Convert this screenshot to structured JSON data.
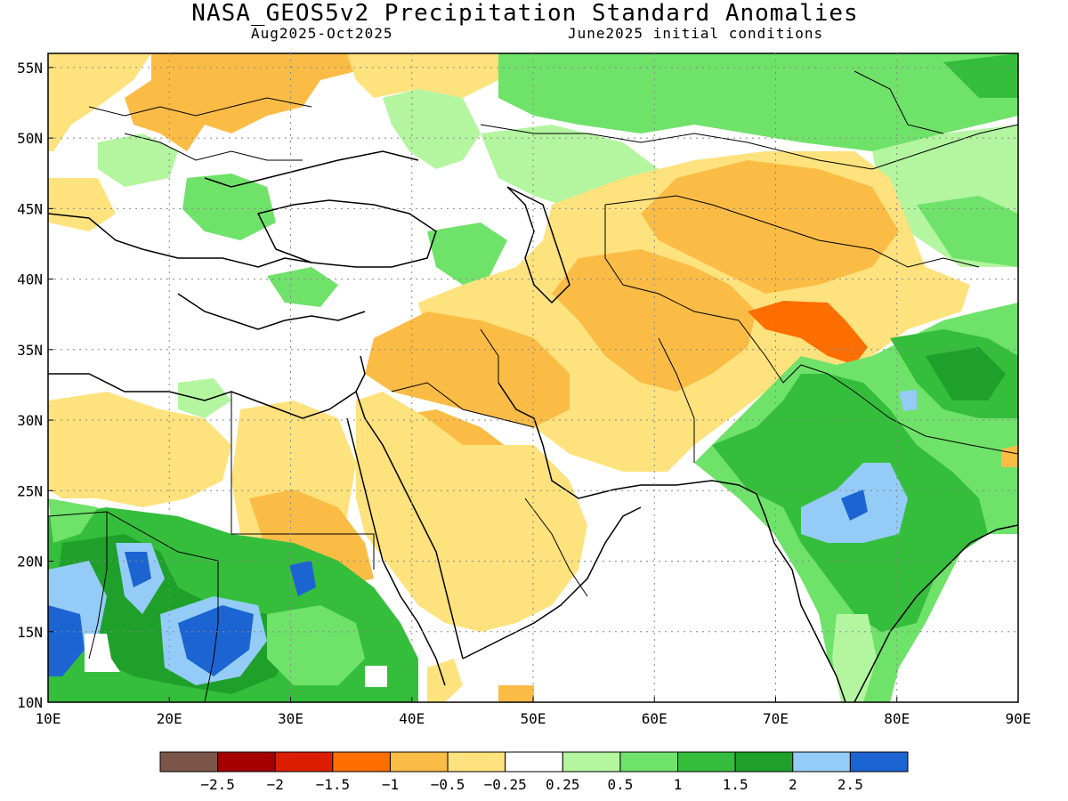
{
  "title": "NASA_GEOS5v2 Precipitation Standard Anomalies",
  "subtitle_left": "Aug2025-Oct2025",
  "subtitle_right": "June2025 initial conditions",
  "map": {
    "lon_range": [
      10,
      90
    ],
    "lat_range": [
      10,
      56
    ],
    "lon_ticks": [
      "10E",
      "20E",
      "30E",
      "40E",
      "50E",
      "60E",
      "70E",
      "80E",
      "90E"
    ],
    "lat_ticks": [
      "10N",
      "15N",
      "20N",
      "25N",
      "30N",
      "35N",
      "40N",
      "45N",
      "50N",
      "55N"
    ],
    "lon_tick_values": [
      10,
      20,
      30,
      40,
      50,
      60,
      70,
      80,
      90
    ],
    "lat_tick_values": [
      10,
      15,
      20,
      25,
      30,
      35,
      40,
      45,
      50,
      55
    ],
    "gridlines": "dotted"
  },
  "colorbar": {
    "colors": [
      "#7a5548",
      "#a50000",
      "#dc1e00",
      "#ff6e00",
      "#fbbc46",
      "#fee27d",
      "#ffffff",
      "#b4f5a0",
      "#6fe26a",
      "#35be3c",
      "#1ea02a",
      "#94ccf7",
      "#1c64d2"
    ],
    "labels": [
      "-2.5",
      "-2",
      "-1.5",
      "-1",
      "-0.5",
      "-0.25",
      "0.25",
      "0.5",
      "1",
      "1.5",
      "2",
      "2.5"
    ]
  },
  "palette": {
    "orange_light": "#fee27d",
    "orange": "#fbbc46",
    "orange_dark": "#ff6e00",
    "green_light": "#b4f5a0",
    "green": "#6fe26a",
    "green_mid": "#35be3c",
    "green_dark": "#1ea02a",
    "blue_light": "#94ccf7",
    "blue": "#1c64d2"
  }
}
